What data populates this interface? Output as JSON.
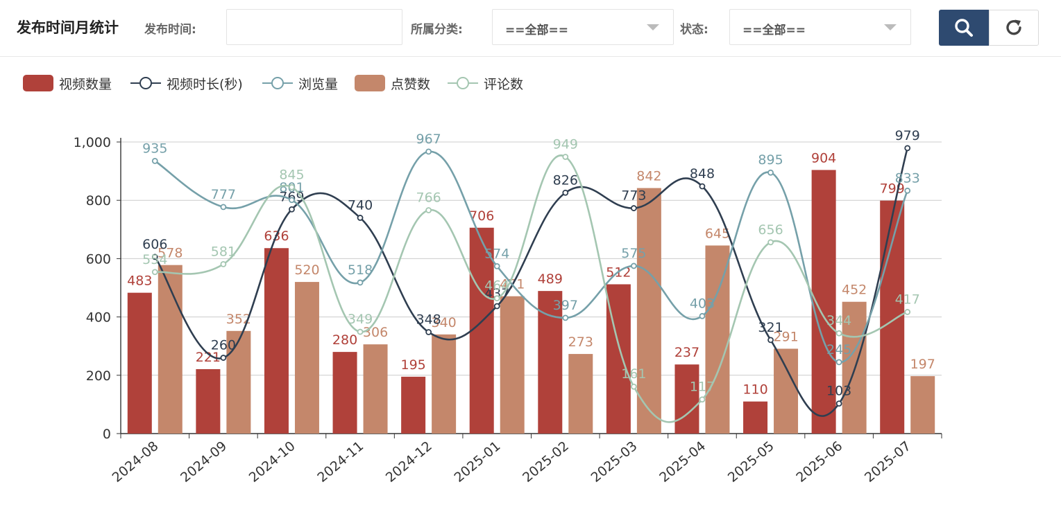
{
  "header": {
    "title": "发布时间月统计",
    "publish_time_label": "发布时间:",
    "publish_time_value": "",
    "category_label": "所属分类:",
    "category_value": "==全部==",
    "status_label": "状态:",
    "status_value": "==全部=="
  },
  "buttons": {
    "search_icon": "search-icon",
    "refresh_icon": "refresh-icon"
  },
  "colors": {
    "video_count": "#b0413a",
    "video_duration": "#2f3e50",
    "views": "#75a0a9",
    "likes": "#c4876b",
    "comments": "#a4c6b1",
    "primary_button": "#2e4a70"
  },
  "chart_data": {
    "type": "bar",
    "title": "发布时间月统计",
    "categories": [
      "2024-08",
      "2024-09",
      "2024-10",
      "2024-11",
      "2024-12",
      "2025-01",
      "2025-02",
      "2025-03",
      "2025-04",
      "2025-05",
      "2025-06",
      "2025-07"
    ],
    "ylim": [
      0,
      1000
    ],
    "yticks": [
      0,
      200,
      400,
      600,
      800,
      1000
    ],
    "ytick_labels": [
      "0",
      "200",
      "400",
      "600",
      "800",
      "1,000"
    ],
    "grid": true,
    "legend_position": "top-left",
    "series": [
      {
        "name": "视频数量",
        "type": "bar",
        "values": [
          483,
          221,
          636,
          280,
          195,
          706,
          489,
          512,
          237,
          110,
          904,
          799
        ]
      },
      {
        "name": "视频时长(秒)",
        "type": "line",
        "values": [
          606,
          260,
          769,
          740,
          348,
          437,
          826,
          773,
          848,
          321,
          103,
          979
        ]
      },
      {
        "name": "浏览量",
        "type": "line",
        "values": [
          935,
          777,
          801,
          518,
          967,
          574,
          397,
          575,
          403,
          895,
          245,
          833
        ]
      },
      {
        "name": "点赞数",
        "type": "bar",
        "values": [
          578,
          352,
          520,
          306,
          340,
          471,
          273,
          842,
          645,
          291,
          452,
          197
        ]
      },
      {
        "name": "评论数",
        "type": "line",
        "values": [
          554,
          581,
          845,
          349,
          766,
          464,
          949,
          161,
          117,
          656,
          344,
          417
        ]
      }
    ]
  }
}
